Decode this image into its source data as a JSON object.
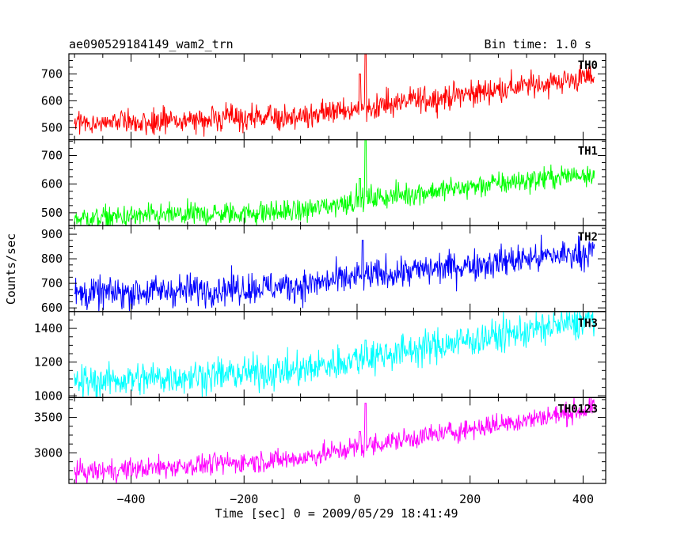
{
  "header": {
    "left": "ae090529184149_wam2_trn",
    "right": "Bin time: 1.0 s"
  },
  "xlabel": "Time [sec] 0 = 2009/05/29 18:41:49",
  "ylabel": "Counts/sec",
  "chart_data": {
    "type": "line",
    "xlim": [
      -510,
      440
    ],
    "x_ticks": [
      -400,
      -200,
      0,
      200,
      400
    ],
    "x_range": [
      -500,
      420
    ],
    "bin_time_s": 1.0,
    "panels": [
      {
        "name": "TH0",
        "color": "#ff0000",
        "ylim": [
          455,
          775
        ],
        "y_ticks": [
          500,
          600,
          700
        ],
        "trend": [
          [
            -500,
            515
          ],
          [
            -100,
            540
          ],
          [
            0,
            570
          ],
          [
            420,
            690
          ]
        ],
        "noise": 24,
        "spikes": [
          {
            "x": 15,
            "y": 775
          },
          {
            "x": 5,
            "y": 700
          }
        ]
      },
      {
        "name": "TH1",
        "color": "#00ff00",
        "ylim": [
          455,
          755
        ],
        "y_ticks": [
          500,
          600,
          700
        ],
        "trend": [
          [
            -500,
            480
          ],
          [
            -100,
            505
          ],
          [
            0,
            545
          ],
          [
            420,
            640
          ]
        ],
        "noise": 20,
        "spikes": [
          {
            "x": 15,
            "y": 755
          },
          {
            "x": 5,
            "y": 620
          }
        ]
      },
      {
        "name": "TH2",
        "color": "#0000ff",
        "ylim": [
          585,
          935
        ],
        "y_ticks": [
          600,
          700,
          800,
          900
        ],
        "trend": [
          [
            -500,
            655
          ],
          [
            -100,
            690
          ],
          [
            0,
            725
          ],
          [
            420,
            830
          ]
        ],
        "noise": 32,
        "spikes": [
          {
            "x": 10,
            "y": 875
          }
        ]
      },
      {
        "name": "TH3",
        "color": "#00ffff",
        "ylim": [
          990,
          1500
        ],
        "y_ticks": [
          1000,
          1200,
          1400
        ],
        "trend": [
          [
            -500,
            1080
          ],
          [
            -100,
            1150
          ],
          [
            0,
            1220
          ],
          [
            420,
            1450
          ]
        ],
        "noise": 50,
        "spikes": [
          {
            "x": 15,
            "y": 1330
          }
        ]
      },
      {
        "name": "TH0123",
        "color": "#ff00ff",
        "ylim": [
          2570,
          3780
        ],
        "y_ticks": [
          3000,
          3500
        ],
        "trend": [
          [
            -500,
            2720
          ],
          [
            -100,
            2920
          ],
          [
            0,
            3080
          ],
          [
            420,
            3620
          ]
        ],
        "noise": 75,
        "spikes": [
          {
            "x": 15,
            "y": 3700
          },
          {
            "x": 5,
            "y": 3300
          }
        ]
      }
    ]
  }
}
